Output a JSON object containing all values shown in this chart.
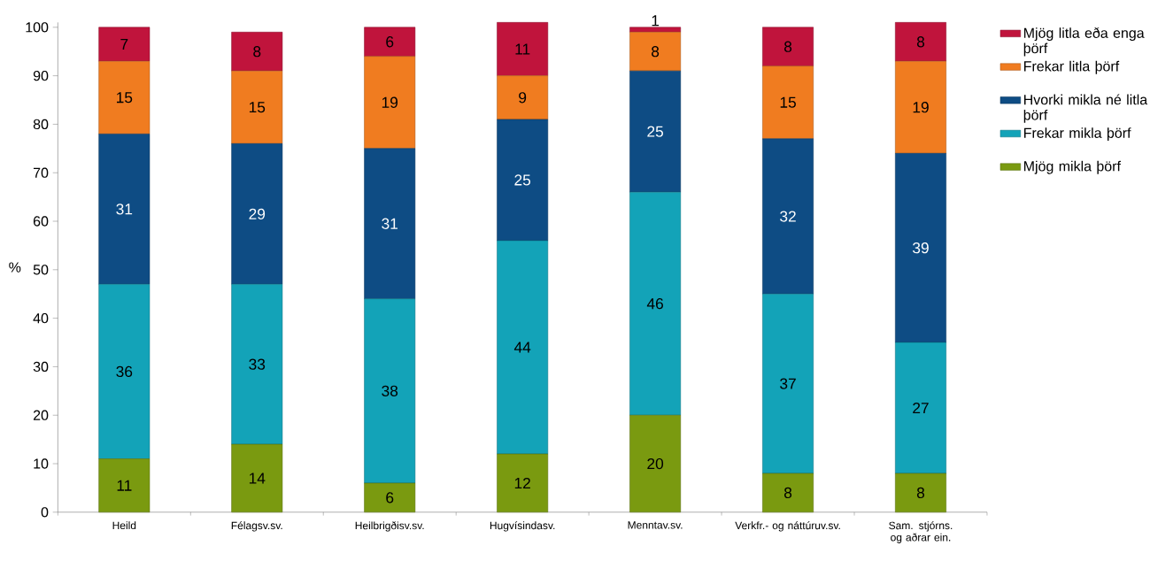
{
  "chart_data": {
    "type": "bar",
    "stacked": true,
    "ylabel": "%",
    "categories": [
      "Heild",
      "Félagsv.sv.",
      "Heilbrigðisv.sv.",
      "Hugvísindasv.",
      "Menntav.sv.",
      "Verkfr.- og náttúruv.sv.",
      "Sam. stjórns. og aðrar ein."
    ],
    "series": [
      {
        "name": "Mjög mikla þörf",
        "color": "#7a9a10",
        "values": [
          11,
          14,
          6,
          12,
          20,
          8,
          8
        ]
      },
      {
        "name": "Frekar mikla þörf",
        "color": "#13a3b8",
        "values": [
          36,
          33,
          38,
          44,
          46,
          37,
          27
        ]
      },
      {
        "name": "Hvorki mikla né litla þörf",
        "color": "#0e4c84",
        "values": [
          31,
          29,
          31,
          25,
          25,
          32,
          39
        ]
      },
      {
        "name": "Frekar litla þörf",
        "color": "#f07c20",
        "values": [
          15,
          15,
          19,
          9,
          8,
          15,
          19
        ]
      },
      {
        "name": "Mjög litla eða enga þörf",
        "color": "#c0143c",
        "values": [
          7,
          8,
          6,
          11,
          1,
          8,
          8
        ]
      }
    ],
    "ylim": [
      0,
      101
    ],
    "yticks": [
      0,
      10,
      20,
      30,
      40,
      50,
      60,
      70,
      80,
      90,
      100
    ],
    "data_labels": true,
    "legend": "right",
    "grid": false
  }
}
